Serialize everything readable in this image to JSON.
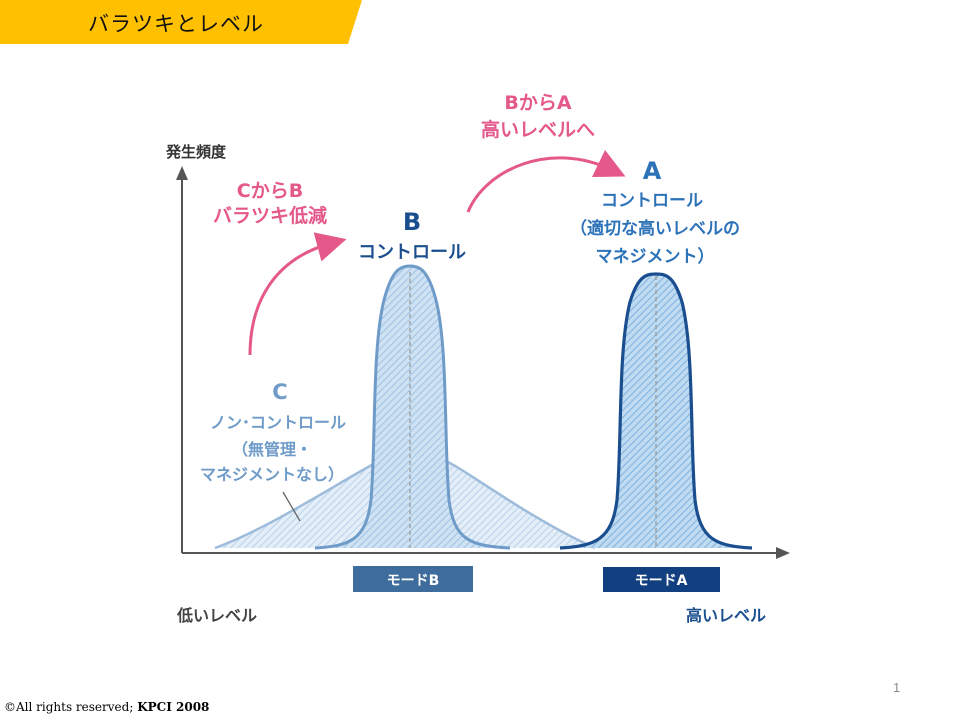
{
  "slide": {
    "title": "バラツキとレベル",
    "page_number": "1",
    "copyright_prefix": "©All rights reserved; ",
    "copyright_org": "KPCI 2008",
    "colors": {
      "banner": "#FFC000",
      "pink": "#E4588A",
      "light_blue": "#6F9BC9",
      "dark_blue": "#1A4E8E"
    }
  },
  "diagram": {
    "y_axis_label": "発生頻度",
    "x_low_label": "低いレベル",
    "x_high_label": "高いレベル",
    "arrow_c_to_b": {
      "line1": "CからB",
      "line2": "バラツキ低減"
    },
    "arrow_b_to_a": {
      "line1": "BからA",
      "line2": "高いレベルへ"
    },
    "curve_a": {
      "letter": "A",
      "line1": "コントロール",
      "line2": "（適切な高いレベルの",
      "line3": "マネジメント）"
    },
    "curve_b": {
      "letter": "B",
      "line1": "コントロール"
    },
    "curve_c": {
      "letter": "C",
      "line1": "ノン･コントロール",
      "line2": "（無管理・",
      "line3": "マネジメントなし）"
    },
    "mode_b_label": "モードB",
    "mode_a_label": "モードA"
  }
}
